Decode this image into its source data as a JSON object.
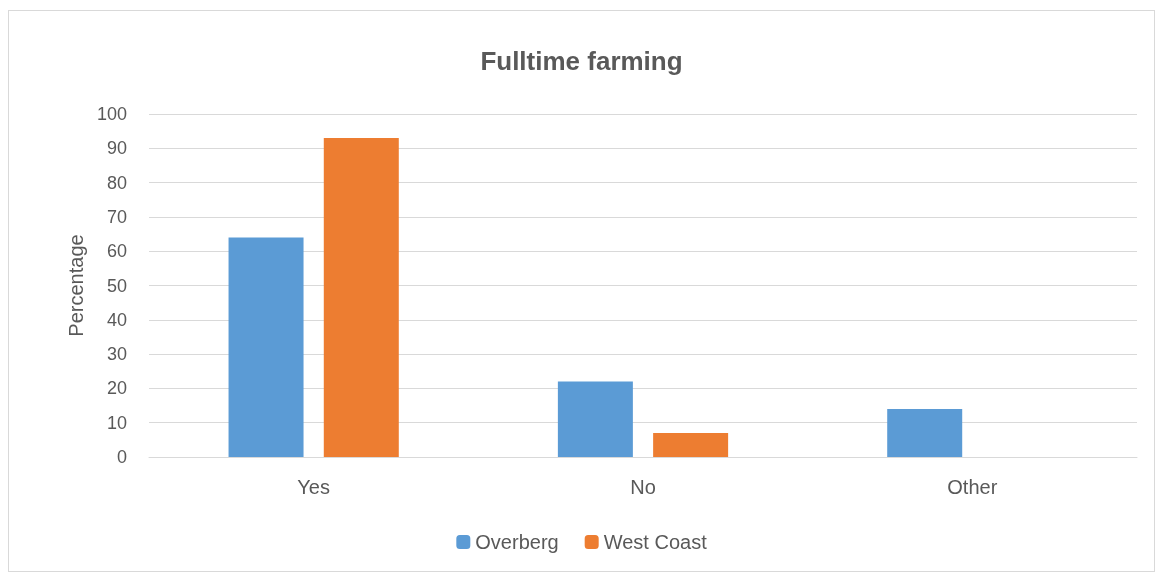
{
  "chart_data": {
    "type": "bar",
    "title": "Fulltime farming",
    "ylabel": "Percentage",
    "categories": [
      "Yes",
      "No",
      "Other"
    ],
    "series": [
      {
        "name": "Overberg",
        "color": "#5b9bd5",
        "values": [
          64,
          22,
          14
        ]
      },
      {
        "name": "West Coast",
        "color": "#ed7d31",
        "values": [
          93,
          7,
          0
        ]
      }
    ],
    "ylim": [
      0,
      100
    ],
    "yticks": [
      0,
      10,
      20,
      30,
      40,
      50,
      60,
      70,
      80,
      90,
      100
    ],
    "grid": "y",
    "legend": "bottom"
  }
}
